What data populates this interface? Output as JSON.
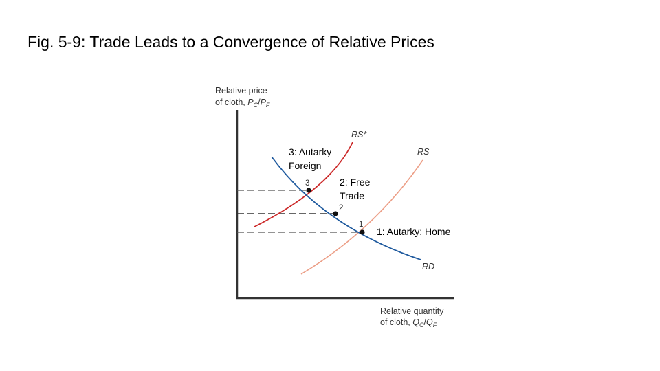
{
  "title": "Fig. 5-9:  Trade Leads to a Convergence of Relative Prices",
  "axes": {
    "y_label_line1": "Relative price",
    "y_label_line2_prefix": "of cloth, ",
    "y_label_var": "P",
    "y_label_sub1": "C",
    "y_label_sep": "/",
    "y_label_var2": "P",
    "y_label_sub2": "F",
    "x_label_line1": "Relative quantity",
    "x_label_line2_prefix": "of cloth, ",
    "x_label_var": "Q",
    "x_label_sub1": "C",
    "x_label_sep": "/",
    "x_label_var2": "Q",
    "x_label_sub2": "F"
  },
  "curves": {
    "rs_star": {
      "label": "RS*",
      "color": "#cc2a2a"
    },
    "rs": {
      "label": "RS",
      "color": "#ec9e86"
    },
    "rd": {
      "label": "RD",
      "color": "#1f5a9e"
    }
  },
  "points": [
    {
      "number": "3"
    },
    {
      "number": "2"
    },
    {
      "number": "1"
    }
  ],
  "callouts": {
    "foreign_line1": "3: Autarky",
    "foreign_line2": "Foreign",
    "trade_line1": "2: Free",
    "trade_line2": "Trade",
    "home": "1: Autarky: Home"
  }
}
